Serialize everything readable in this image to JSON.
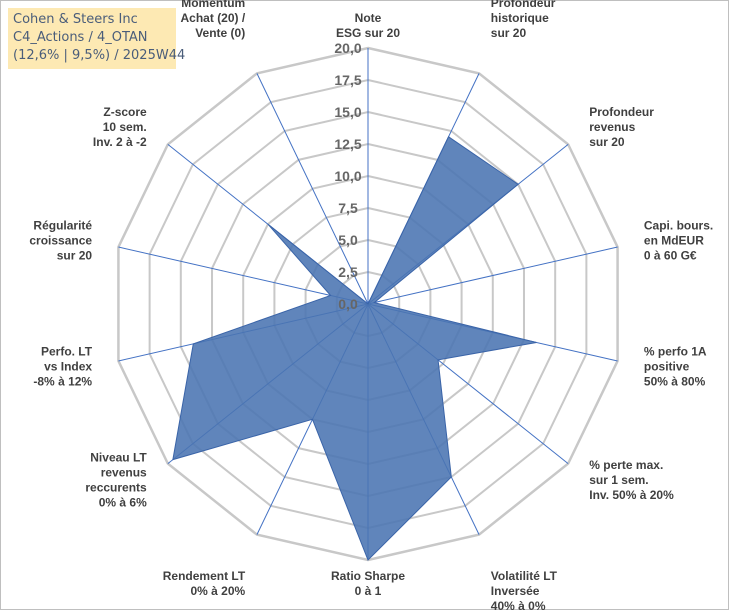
{
  "title_box": {
    "line1": "Cohen & Steers Inc",
    "line2": "C4_Actions / 4_OTAN",
    "line3": "(12,6% | 9,5%) / 2025W44"
  },
  "colors": {
    "fill": "#4a74b2",
    "stroke": "#3a64a8",
    "grid": "#c8c8c8",
    "spoke": "#4472c4",
    "title_bg": "#fde9b3"
  },
  "chart_data": {
    "type": "radar",
    "rmax": 20,
    "ticks": [
      {
        "value": 0,
        "label": "0,0"
      },
      {
        "value": 2.5,
        "label": "2,5"
      },
      {
        "value": 5,
        "label": "5,0"
      },
      {
        "value": 7.5,
        "label": "7,5"
      },
      {
        "value": 10,
        "label": "10,0"
      },
      {
        "value": 12.5,
        "label": "12,5"
      },
      {
        "value": 15,
        "label": "15,0"
      },
      {
        "value": 17.5,
        "label": "17,5"
      },
      {
        "value": 20,
        "label": "20,0"
      }
    ],
    "axes": [
      {
        "lines": [
          "Note",
          "ESG sur 20"
        ],
        "value": 0
      },
      {
        "lines": [
          "Profondeur",
          "historique",
          "sur 20"
        ],
        "value": 14.5
      },
      {
        "lines": [
          "Profondeur",
          "revenus",
          "sur 20"
        ],
        "value": 15.0
      },
      {
        "lines": [
          "Capi. bours.",
          "en MdEUR",
          "0 à 60 G€"
        ],
        "value": 0.5
      },
      {
        "lines": [
          "% perfo 1A",
          "positive",
          "50% à 80%"
        ],
        "value": 13.5
      },
      {
        "lines": [
          "% perte max.",
          "sur 1 sem.",
          "Inv. 50% à 20%"
        ],
        "value": 7.0
      },
      {
        "lines": [
          "Volatilité LT",
          "Inversée",
          "40% à 0%"
        ],
        "value": 15.0
      },
      {
        "lines": [
          "Ratio Sharpe",
          "0 à 1"
        ],
        "value": 20.0
      },
      {
        "lines": [
          "Rendement LT",
          "0% à 20%"
        ],
        "value": 10.0
      },
      {
        "lines": [
          "Niveau LT",
          "revenus",
          "reccurents",
          "0% à 6%"
        ],
        "value": 19.5
      },
      {
        "lines": [
          "Perfo. LT",
          "vs Index",
          "-8% à 12%"
        ],
        "value": 14.0
      },
      {
        "lines": [
          "Régularité",
          "croissance",
          "sur 20"
        ],
        "value": 3.0
      },
      {
        "lines": [
          "Z-score",
          "10 sem.",
          "Inv. 2 à -2"
        ],
        "value": 10.0
      },
      {
        "lines": [
          "Momentum",
          "Achat (20) /",
          "Vente (0)"
        ],
        "value": 0
      }
    ]
  }
}
